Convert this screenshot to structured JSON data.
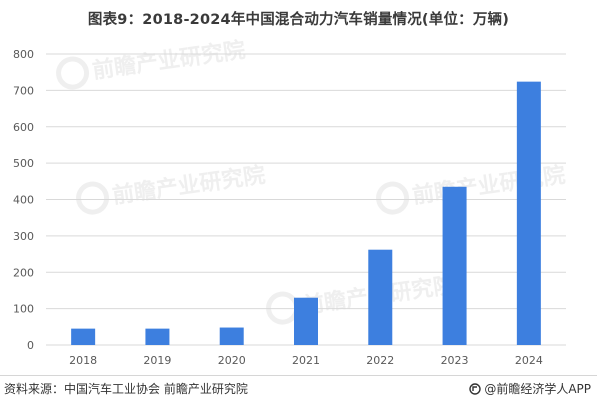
{
  "chart_data": {
    "type": "bar",
    "title": "图表9：2018-2024年中国混合动力汽车销量情况(单位：万辆)",
    "categories": [
      "2018",
      "2019",
      "2020",
      "2021",
      "2022",
      "2023",
      "2024"
    ],
    "values": [
      45,
      45,
      48,
      130,
      262,
      435,
      724
    ],
    "ylim": [
      0,
      800
    ],
    "yticks": [
      0,
      100,
      200,
      300,
      400,
      500,
      600,
      700,
      800
    ],
    "grid": true,
    "bar_color": "#3d7fdf"
  },
  "footer": {
    "source": "资料来源：中国汽车工业协会 前瞻产业研究院",
    "brand": "@前瞻经济学人APP"
  },
  "watermark": {
    "text": "前瞻产业研究院"
  },
  "colors": {
    "grid": "#d9d9d9",
    "axis_text": "#595959"
  }
}
